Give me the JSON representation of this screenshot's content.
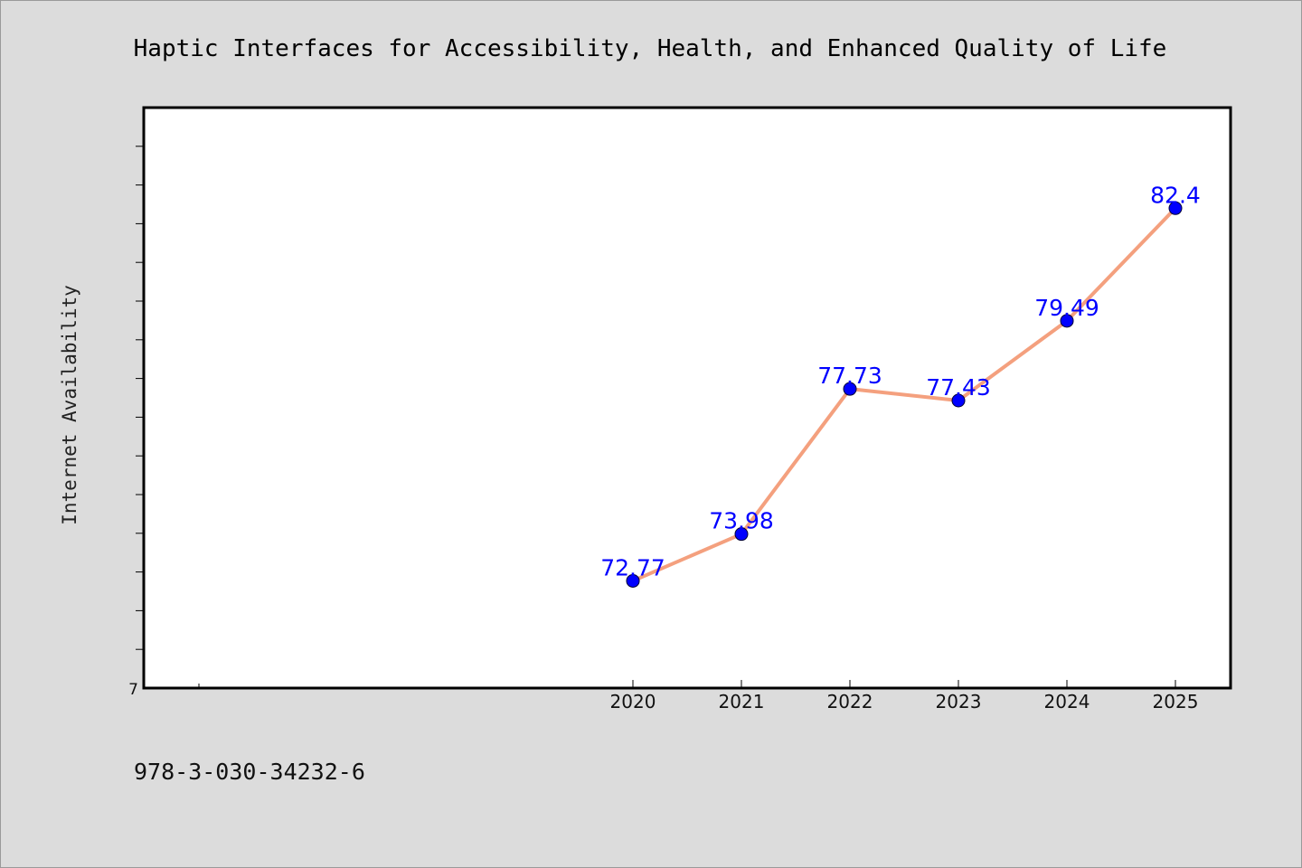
{
  "chart_data": {
    "type": "line",
    "title": "Haptic Interfaces for Accessibility, Health, and Enhanced Quality of Life",
    "xlabel": "",
    "ylabel": "Internet Availability",
    "x": [
      "2020",
      "2021",
      "2022",
      "2023",
      "2024",
      "2025"
    ],
    "series": [
      {
        "values": [
          72.77,
          73.98,
          77.73,
          77.43,
          79.49,
          82.4
        ],
        "data_labels": [
          "72.77",
          "73.98",
          "77.73",
          "77.43",
          "79.49",
          "82.4"
        ]
      }
    ],
    "ylim": [
      70,
      85
    ],
    "y_tick_labels": [
      "7"
    ],
    "grid": false,
    "legend": "none",
    "colors": {
      "line": "#f4a07e",
      "marker": "#0000ff",
      "data_label": "#0000ff",
      "plot_background": "#ffffff",
      "figure_background": "#dcdcdc"
    }
  },
  "footer": {
    "isbn": "978-3-030-34232-6"
  }
}
